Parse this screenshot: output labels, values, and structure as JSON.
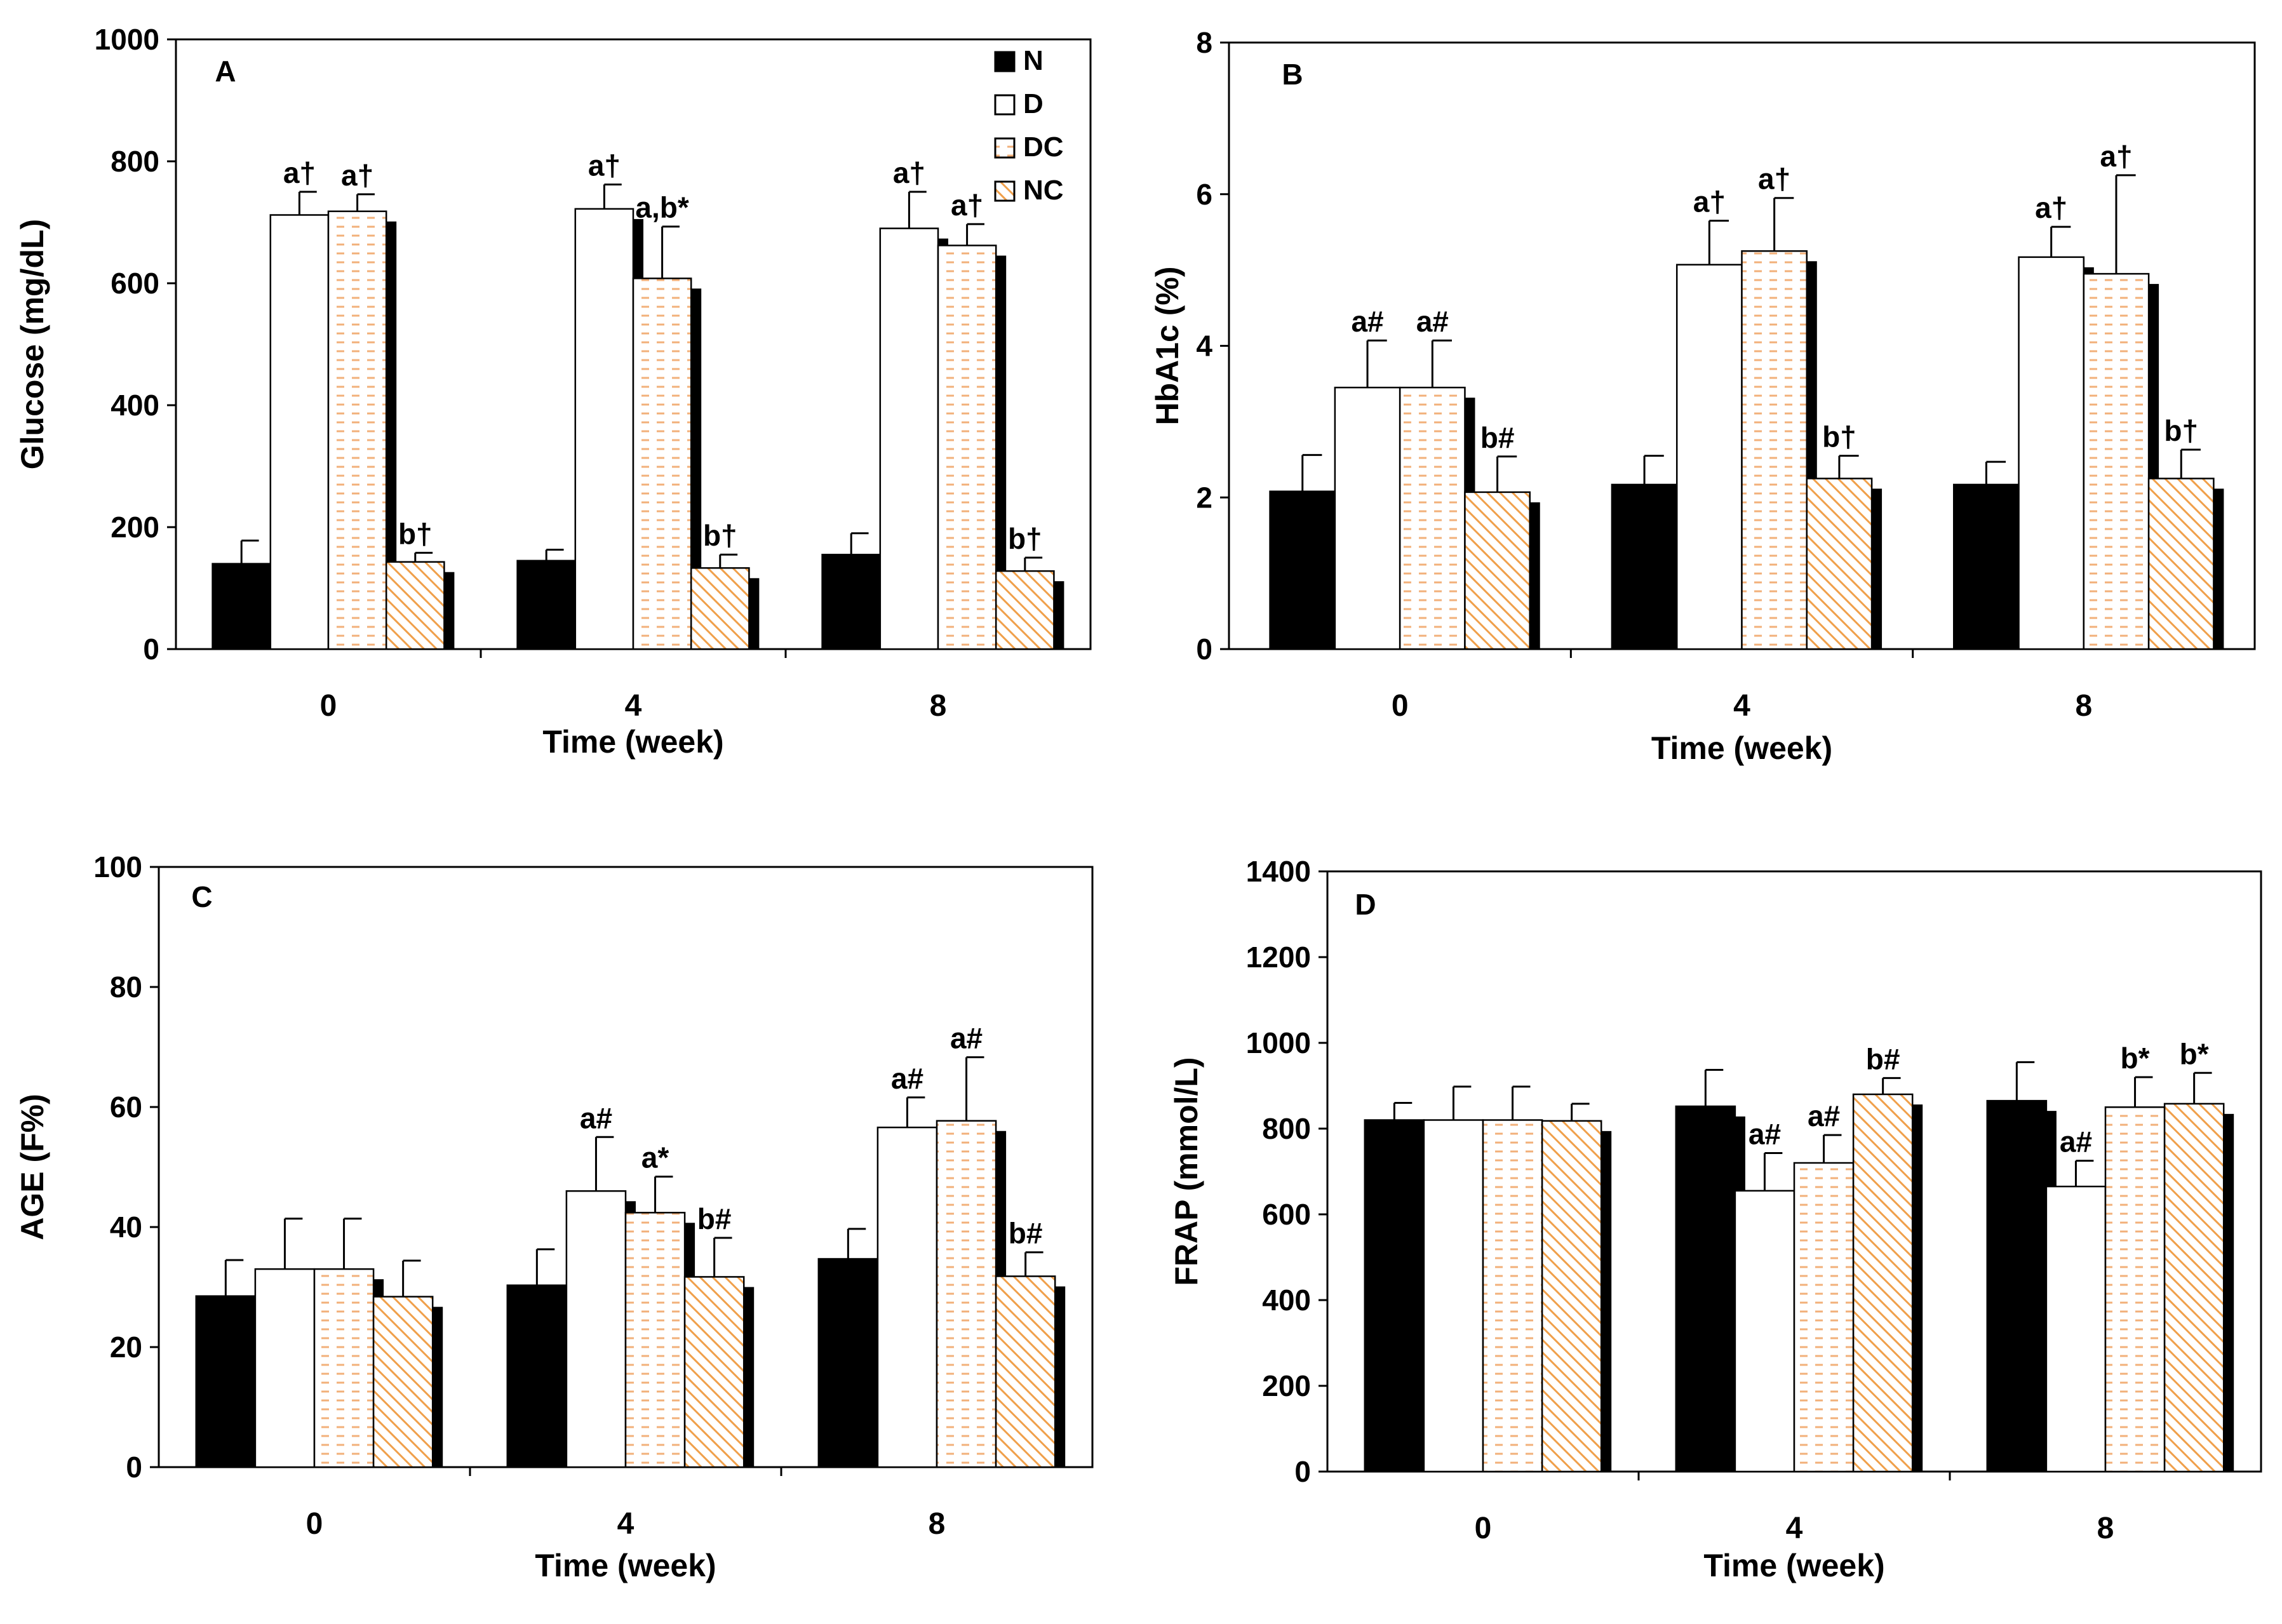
{
  "figure": {
    "time_label": "Time (week)",
    "groups": [
      "N",
      "D",
      "DC",
      "NC"
    ],
    "colors": {
      "N": "#000000",
      "D": "#ffffff",
      "DC": "#f2b07a",
      "NC": "#f0a04b"
    }
  },
  "chart_data": [
    {
      "type": "bar",
      "panel": "A",
      "ylabel": "Glucose (mg/dL)",
      "xlabel": "Time (week)",
      "ylim": [
        0,
        1000
      ],
      "yticks": [
        0,
        200,
        400,
        600,
        800,
        1000
      ],
      "categories": [
        "0",
        "4",
        "8"
      ],
      "legend": {
        "position": "top-right",
        "entries": [
          "N",
          "D",
          "DC",
          "NC"
        ]
      },
      "series": [
        {
          "name": "N",
          "values": [
            140,
            145,
            155
          ],
          "errors": [
            38,
            18,
            35
          ],
          "labels": [
            "",
            "",
            ""
          ]
        },
        {
          "name": "D",
          "values": [
            712,
            722,
            690
          ],
          "errors": [
            38,
            40,
            60
          ],
          "labels": [
            "a†",
            "a†",
            "a†"
          ]
        },
        {
          "name": "DC",
          "values": [
            718,
            608,
            662
          ],
          "errors": [
            28,
            85,
            35
          ],
          "labels": [
            "a†",
            "a,b*",
            "a†"
          ]
        },
        {
          "name": "NC",
          "values": [
            143,
            133,
            128
          ],
          "errors": [
            15,
            22,
            22
          ],
          "labels": [
            "b†",
            "b†",
            "b†"
          ]
        }
      ]
    },
    {
      "type": "bar",
      "panel": "B",
      "ylabel": "HbA1c (%)",
      "xlabel": "Time (week)",
      "ylim": [
        0,
        8
      ],
      "yticks": [
        0,
        2,
        4,
        6,
        8
      ],
      "categories": [
        "0",
        "4",
        "8"
      ],
      "series": [
        {
          "name": "N",
          "values": [
            2.08,
            2.17,
            2.17
          ],
          "errors": [
            0.48,
            0.38,
            0.3
          ],
          "labels": [
            "",
            "",
            ""
          ]
        },
        {
          "name": "D",
          "values": [
            3.45,
            5.07,
            5.17
          ],
          "errors": [
            0.62,
            0.58,
            0.4
          ],
          "labels": [
            "a#",
            "a†",
            "a†"
          ]
        },
        {
          "name": "DC",
          "values": [
            3.45,
            5.25,
            4.95
          ],
          "errors": [
            0.62,
            0.7,
            1.3
          ],
          "labels": [
            "a#",
            "a†",
            "a†"
          ]
        },
        {
          "name": "NC",
          "values": [
            2.07,
            2.25,
            2.25
          ],
          "errors": [
            0.47,
            0.3,
            0.38
          ],
          "labels": [
            "b#",
            "b†",
            "b†"
          ]
        }
      ]
    },
    {
      "type": "bar",
      "panel": "C",
      "ylabel": "AGE (F%)",
      "xlabel": "Time (week)",
      "ylim": [
        0,
        100
      ],
      "yticks": [
        0,
        20,
        40,
        60,
        80,
        100
      ],
      "categories": [
        "0",
        "4",
        "8"
      ],
      "series": [
        {
          "name": "N",
          "values": [
            28.5,
            30.3,
            34.7
          ],
          "errors": [
            6.0,
            6.0,
            5.0
          ],
          "labels": [
            "",
            "",
            ""
          ]
        },
        {
          "name": "D",
          "values": [
            33.0,
            46.0,
            56.6
          ],
          "errors": [
            8.4,
            9.0,
            5.0
          ],
          "labels": [
            "",
            "a#",
            "a#"
          ]
        },
        {
          "name": "DC",
          "values": [
            33.0,
            42.4,
            57.7
          ],
          "errors": [
            8.4,
            6.0,
            10.6
          ],
          "labels": [
            "",
            "a*",
            "a#"
          ]
        },
        {
          "name": "NC",
          "values": [
            28.4,
            31.7,
            31.8
          ],
          "errors": [
            6.0,
            6.5,
            4.0
          ],
          "labels": [
            "",
            "b#",
            "b#"
          ]
        }
      ]
    },
    {
      "type": "bar",
      "panel": "D",
      "ylabel": "FRAP (mmol/L)",
      "xlabel": "Time (week)",
      "ylim": [
        0,
        1400
      ],
      "yticks": [
        0,
        200,
        400,
        600,
        800,
        1000,
        1200,
        1400
      ],
      "categories": [
        "0",
        "4",
        "8"
      ],
      "series": [
        {
          "name": "N",
          "values": [
            820,
            852,
            865
          ],
          "errors": [
            40,
            85,
            90
          ],
          "labels": [
            "",
            "",
            ""
          ]
        },
        {
          "name": "D",
          "values": [
            820,
            655,
            665
          ],
          "errors": [
            78,
            88,
            60
          ],
          "labels": [
            "",
            "a#",
            "a#"
          ]
        },
        {
          "name": "DC",
          "values": [
            820,
            720,
            850
          ],
          "errors": [
            78,
            65,
            70
          ],
          "labels": [
            "",
            "a#",
            "b*"
          ]
        },
        {
          "name": "NC",
          "values": [
            818,
            880,
            858
          ],
          "errors": [
            40,
            38,
            72
          ],
          "labels": [
            "",
            "b#",
            "b*"
          ]
        }
      ]
    }
  ]
}
